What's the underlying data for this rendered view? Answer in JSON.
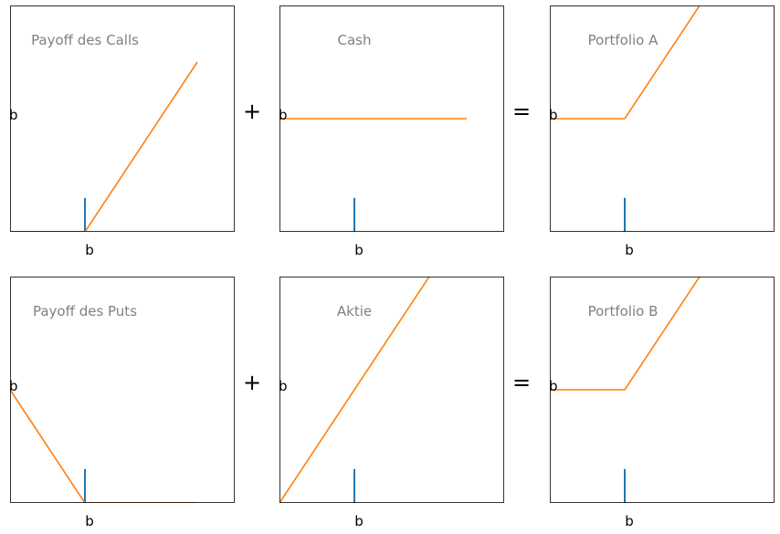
{
  "colors": {
    "payoff_line": "#ff7f0e",
    "strike_marker": "#1f77b4",
    "frame": "#000000",
    "panel_title": "#808080"
  },
  "operators": [
    "+",
    "=",
    "+",
    "="
  ],
  "chart_data": [
    {
      "type": "line",
      "title": "Payoff des Calls",
      "x_tick": "b",
      "y_tick": "b",
      "xlim": [
        0,
        6
      ],
      "ylim": [
        0,
        6
      ],
      "series": [
        {
          "x": [
            0,
            2,
            5
          ],
          "y": [
            0,
            0,
            4.5
          ]
        }
      ],
      "strike_marker": {
        "x": 2,
        "y": [
          0,
          0.9
        ]
      },
      "grid": false
    },
    {
      "type": "line",
      "title": "Cash",
      "x_tick": "b",
      "y_tick": "b",
      "xlim": [
        0,
        6
      ],
      "ylim": [
        0,
        6
      ],
      "series": [
        {
          "x": [
            0,
            5
          ],
          "y": [
            3,
            3
          ]
        }
      ],
      "strike_marker": {
        "x": 2,
        "y": [
          0,
          0.9
        ]
      },
      "grid": false
    },
    {
      "type": "line",
      "title": "Portfolio A",
      "x_tick": "b",
      "y_tick": "b",
      "xlim": [
        0,
        6
      ],
      "ylim": [
        0,
        6
      ],
      "series": [
        {
          "x": [
            0,
            2,
            5
          ],
          "y": [
            3,
            3,
            7.5
          ]
        }
      ],
      "strike_marker": {
        "x": 2,
        "y": [
          0,
          0.9
        ]
      },
      "grid": false
    },
    {
      "type": "line",
      "title": "Payoff des Puts",
      "x_tick": "b",
      "y_tick": "b",
      "xlim": [
        0,
        6
      ],
      "ylim": [
        0,
        6
      ],
      "series": [
        {
          "x": [
            0,
            2,
            5
          ],
          "y": [
            3,
            0,
            0
          ]
        }
      ],
      "strike_marker": {
        "x": 2,
        "y": [
          0,
          0.9
        ]
      },
      "grid": false
    },
    {
      "type": "line",
      "title": "Aktie",
      "x_tick": "b",
      "y_tick": "b",
      "xlim": [
        0,
        6
      ],
      "ylim": [
        0,
        6
      ],
      "series": [
        {
          "x": [
            0,
            5
          ],
          "y": [
            0,
            7.5
          ]
        }
      ],
      "strike_marker": {
        "x": 2,
        "y": [
          0,
          0.9
        ]
      },
      "grid": false
    },
    {
      "type": "line",
      "title": "Portfolio B",
      "x_tick": "b",
      "y_tick": "b",
      "xlim": [
        0,
        6
      ],
      "ylim": [
        0,
        6
      ],
      "series": [
        {
          "x": [
            0,
            2,
            5
          ],
          "y": [
            3,
            3,
            7.5
          ]
        }
      ],
      "strike_marker": {
        "x": 2,
        "y": [
          0,
          0.9
        ]
      },
      "grid": false
    }
  ]
}
